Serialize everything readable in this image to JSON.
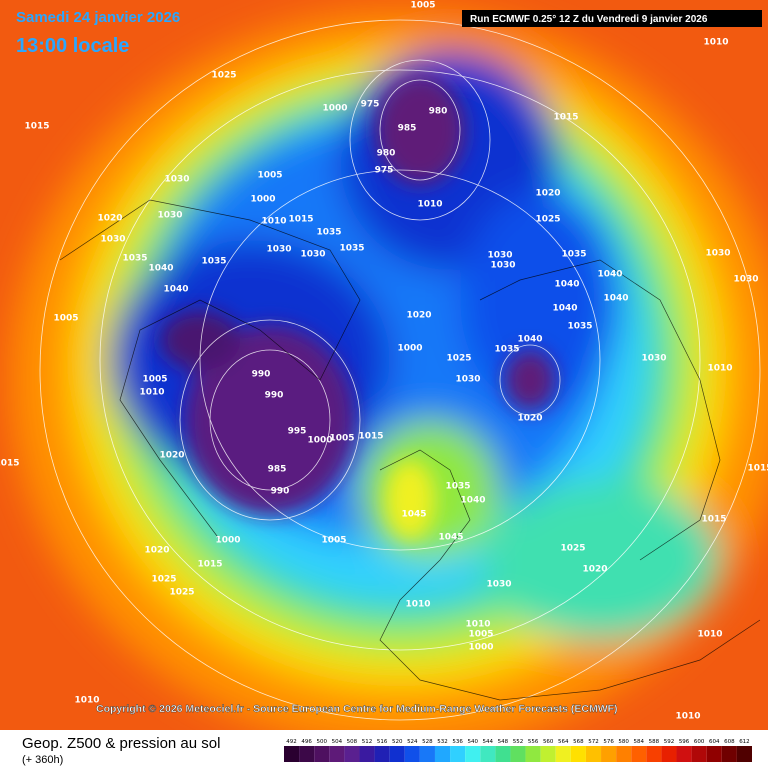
{
  "header": {
    "date": "Samedi 24 janvier 2026",
    "time": "13:00 locale",
    "run": "Run ECMWF 0.25° 12 Z du Vendredi 9 janvier 2026"
  },
  "map": {
    "isobar_labels": [
      1005,
      1010,
      1025,
      1015,
      1000,
      975,
      980,
      985,
      980,
      975,
      1015,
      1030,
      1005,
      1000,
      1010,
      1020,
      1025,
      1020,
      1030,
      1010,
      1015,
      1030,
      1035,
      1030,
      1030,
      1035,
      1035,
      1040,
      1035,
      1030,
      1030,
      1035,
      1040,
      1030,
      1040,
      1040,
      1030,
      1005,
      1020,
      1040,
      1040,
      1035,
      1000,
      1035,
      1040,
      990,
      990,
      1005,
      1010,
      1025,
      1030,
      1030,
      1010,
      995,
      1000,
      1005,
      1015,
      1020,
      1020,
      985,
      990,
      1015,
      1035,
      1040,
      1045,
      1045,
      1000,
      1005,
      1020,
      1015,
      1025,
      1025,
      1025,
      1020,
      1030,
      1010,
      1010,
      1005,
      1000,
      1015,
      1010,
      1010,
      1010,
      1015
    ]
  },
  "copyright": "Copyright © 2026 Meteociel.fr - Source European Centre for Medium-Range Weather Forecasts (ECMWF)",
  "footer": {
    "title": "Geop. Z500 & pression au sol",
    "lead": "(+ 360h)"
  },
  "scale": {
    "labels": [
      492,
      496,
      500,
      504,
      508,
      512,
      516,
      520,
      524,
      528,
      532,
      536,
      540,
      544,
      548,
      552,
      556,
      560,
      564,
      568,
      572,
      576,
      580,
      584,
      588,
      592,
      596,
      600,
      604,
      608,
      612
    ],
    "colors": [
      "#2a0030",
      "#3c0848",
      "#4e1060",
      "#5e1a78",
      "#5a2090",
      "#3a1aa0",
      "#2020b4",
      "#1030d0",
      "#1050ea",
      "#1878f8",
      "#20a8ff",
      "#30d0ff",
      "#40f0f0",
      "#40e8c0",
      "#40e090",
      "#60e060",
      "#90e840",
      "#c0f030",
      "#f0f020",
      "#ffe000",
      "#ffc000",
      "#ffa000",
      "#ff8000",
      "#ff6000",
      "#f84000",
      "#e82000",
      "#d01010",
      "#b00808",
      "#900000",
      "#700000",
      "#500000"
    ]
  }
}
